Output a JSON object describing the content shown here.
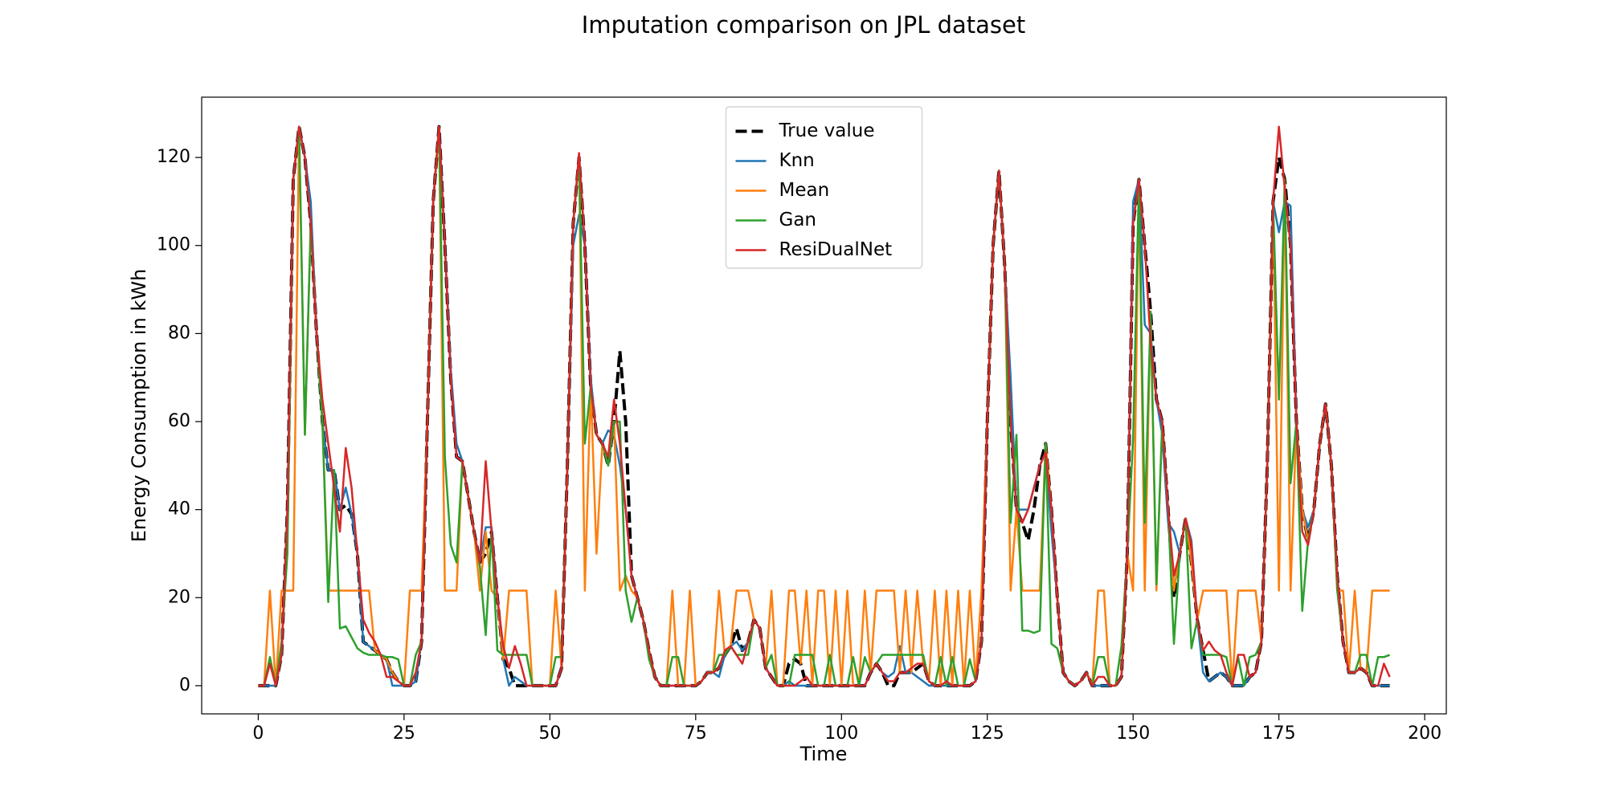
{
  "chart_data": {
    "type": "line",
    "title": "Imputation comparison on JPL dataset",
    "xlabel": "Time",
    "ylabel": "Energy Consumption in kWh",
    "xlim": [
      -9.7,
      203.7
    ],
    "ylim": [
      -6.4,
      133.7
    ],
    "xticks": [
      0,
      25,
      50,
      75,
      100,
      125,
      150,
      175,
      200
    ],
    "yticks": [
      0,
      20,
      40,
      60,
      80,
      100,
      120
    ],
    "legend": "upper center",
    "grid": false,
    "x": [
      0,
      1,
      2,
      3,
      4,
      5,
      6,
      7,
      8,
      9,
      10,
      11,
      12,
      13,
      14,
      15,
      16,
      17,
      18,
      19,
      20,
      21,
      22,
      23,
      24,
      25,
      26,
      27,
      28,
      29,
      30,
      31,
      32,
      33,
      34,
      35,
      36,
      37,
      38,
      39,
      40,
      41,
      42,
      43,
      44,
      45,
      46,
      47,
      48,
      49,
      50,
      51,
      52,
      53,
      54,
      55,
      56,
      57,
      58,
      59,
      60,
      61,
      62,
      63,
      64,
      65,
      66,
      67,
      68,
      69,
      70,
      71,
      72,
      73,
      74,
      75,
      76,
      77,
      78,
      79,
      80,
      81,
      82,
      83,
      84,
      85,
      86,
      87,
      88,
      89,
      90,
      91,
      92,
      93,
      94,
      95,
      96,
      97,
      98,
      99,
      100,
      101,
      102,
      103,
      104,
      105,
      106,
      107,
      108,
      109,
      110,
      111,
      112,
      113,
      114,
      115,
      116,
      117,
      118,
      119,
      120,
      121,
      122,
      123,
      124,
      125,
      126,
      127,
      128,
      129,
      130,
      131,
      132,
      133,
      134,
      135,
      136,
      137,
      138,
      139,
      140,
      141,
      142,
      143,
      144,
      145,
      146,
      147,
      148,
      149,
      150,
      151,
      152,
      153,
      154,
      155,
      156,
      157,
      158,
      159,
      160,
      161,
      162,
      163,
      164,
      165,
      166,
      167,
      168,
      169,
      170,
      171,
      172,
      173,
      174,
      175,
      176,
      177,
      178,
      179,
      180,
      181,
      182,
      183,
      184,
      185,
      186,
      187,
      188,
      189,
      190,
      191,
      192,
      193,
      194
    ],
    "series": [
      {
        "name": "True value",
        "color": "#000000",
        "linestyle": "dashed",
        "linewidth": 4,
        "values": [
          0,
          0,
          0,
          0,
          7,
          40,
          115,
          127,
          120,
          105,
          80,
          60,
          49,
          49,
          40,
          41,
          39,
          30,
          10,
          9,
          8,
          7,
          6,
          3,
          1,
          0,
          0,
          1,
          10,
          60,
          110,
          127,
          100,
          70,
          52,
          51,
          43,
          35,
          28,
          30,
          35,
          20,
          6,
          4,
          0,
          0,
          0,
          0,
          0,
          0,
          0,
          0,
          4,
          50,
          105,
          120,
          100,
          68,
          57,
          55,
          50,
          60,
          76,
          60,
          25,
          20,
          15,
          8,
          2,
          0,
          0,
          0,
          0,
          0,
          0,
          0,
          1,
          3,
          3,
          4,
          7,
          9,
          13,
          8,
          10,
          15,
          13,
          4,
          2,
          0,
          0,
          5,
          6,
          5,
          0,
          0,
          0,
          0,
          0,
          0,
          0,
          0,
          0,
          0,
          0,
          3,
          5,
          3,
          0,
          0,
          3,
          3,
          3,
          4,
          5,
          1,
          0,
          0,
          0,
          0,
          0,
          0,
          0,
          1,
          10,
          60,
          100,
          117,
          95,
          60,
          40,
          37,
          33,
          40,
          50,
          55,
          40,
          20,
          3,
          1,
          0,
          1,
          3,
          0,
          0,
          0,
          0,
          0,
          2,
          30,
          105,
          115,
          100,
          85,
          65,
          60,
          40,
          20,
          30,
          38,
          28,
          15,
          8,
          1,
          2,
          3,
          2,
          0,
          0,
          0,
          2,
          3,
          10,
          50,
          110,
          120,
          115,
          100,
          60,
          40,
          33,
          40,
          55,
          64,
          50,
          25,
          10,
          3,
          3,
          4,
          3,
          0,
          0,
          0,
          0
        ]
      },
      {
        "name": "Knn",
        "color": "#1f77b4",
        "linestyle": "solid",
        "linewidth": 2.5,
        "values": [
          0,
          0,
          0,
          0,
          7,
          40,
          115,
          127,
          120,
          110,
          80,
          60,
          49,
          49,
          40,
          45,
          39,
          30,
          10,
          9,
          8,
          7,
          6,
          0,
          0,
          0,
          0,
          1,
          10,
          60,
          110,
          127,
          100,
          72,
          55,
          51,
          43,
          35,
          28,
          36,
          36,
          20,
          6,
          0,
          2,
          1,
          0,
          0,
          0,
          0,
          0,
          0,
          4,
          50,
          100,
          107,
          100,
          70,
          57,
          55,
          58,
          57,
          50,
          40,
          25,
          20,
          15,
          8,
          2,
          0,
          0,
          0,
          0,
          0,
          0,
          0,
          1,
          3,
          3,
          2,
          7,
          9,
          10,
          8,
          10,
          15,
          13,
          4,
          2,
          0,
          0,
          1,
          0,
          0,
          0,
          0,
          0,
          0,
          0,
          0,
          0,
          0,
          0,
          0,
          0,
          3,
          5,
          3,
          2,
          3,
          9,
          3,
          3,
          2,
          1,
          0,
          0,
          0,
          0,
          0,
          0,
          0,
          0,
          1,
          10,
          60,
          100,
          117,
          95,
          70,
          40,
          40,
          40,
          45,
          50,
          53,
          35,
          20,
          3,
          1,
          0,
          1,
          3,
          0,
          0,
          0,
          0,
          0,
          2,
          30,
          110,
          115,
          82,
          80,
          65,
          57,
          37,
          35,
          30,
          38,
          33,
          15,
          3,
          1,
          2,
          3,
          2,
          0,
          0,
          0,
          2,
          3,
          10,
          50,
          110,
          103,
          110,
          109,
          60,
          40,
          36,
          40,
          55,
          64,
          50,
          25,
          10,
          3,
          3,
          4,
          3,
          0,
          0,
          0,
          0
        ]
      },
      {
        "name": "Mean",
        "color": "#ff7f0e",
        "linestyle": "solid",
        "linewidth": 2.5,
        "values": [
          0,
          0,
          21.6,
          0,
          21.6,
          21.6,
          21.6,
          127,
          57,
          105,
          80,
          60,
          21.6,
          21.6,
          21.6,
          21.6,
          21.6,
          21.6,
          21.6,
          21.6,
          8,
          7,
          6,
          3,
          1,
          0,
          21.6,
          21.6,
          21.6,
          60,
          110,
          127,
          21.6,
          21.6,
          21.6,
          51,
          43,
          35,
          21.6,
          35,
          21.6,
          20,
          6,
          21.6,
          21.6,
          21.6,
          21.6,
          0,
          0,
          0,
          0,
          21.6,
          4,
          50,
          105,
          120,
          21.6,
          68,
          30,
          55,
          50,
          60,
          21.6,
          25,
          21.6,
          20,
          15,
          8,
          2,
          0,
          0,
          21.6,
          0,
          0,
          21.6,
          0,
          1,
          3,
          3,
          21.6,
          7,
          9,
          21.6,
          21.6,
          21.6,
          15,
          13,
          4,
          21.6,
          0,
          0,
          21.6,
          21.6,
          5,
          21.6,
          0,
          21.6,
          21.6,
          0,
          21.6,
          0,
          21.6,
          0,
          0,
          21.6,
          3,
          21.6,
          21.6,
          21.6,
          21.6,
          3,
          21.6,
          3,
          21.6,
          5,
          1,
          21.6,
          0,
          21.6,
          0,
          21.6,
          0,
          21.6,
          1,
          21.6,
          60,
          100,
          117,
          95,
          21.6,
          40,
          21.6,
          21.6,
          21.6,
          21.6,
          55,
          40,
          20,
          3,
          1,
          0,
          1,
          3,
          0,
          21.6,
          21.6,
          0,
          0,
          2,
          30,
          21.6,
          115,
          21.6,
          85,
          21.6,
          60,
          40,
          21.6,
          30,
          38,
          28,
          15,
          21.6,
          21.6,
          21.6,
          21.6,
          21.6,
          0,
          21.6,
          21.6,
          21.6,
          21.6,
          10,
          50,
          110,
          21.6,
          115,
          21.6,
          60,
          40,
          33,
          40,
          55,
          64,
          50,
          21.6,
          21.6,
          3,
          21.6,
          4,
          3,
          21.6,
          21.6,
          21.6,
          21.6
        ]
      },
      {
        "name": "Gan",
        "color": "#2ca02c",
        "linestyle": "solid",
        "linewidth": 2.5,
        "values": [
          0,
          0,
          6.5,
          0,
          10,
          30,
          115,
          127,
          57,
          105,
          80,
          60,
          19,
          49,
          13,
          13.5,
          11,
          8.5,
          7.5,
          7,
          7,
          7,
          6.5,
          6.5,
          6,
          0,
          0,
          7,
          10,
          60,
          110,
          127,
          52,
          32,
          28,
          51,
          43,
          35,
          27,
          11.5,
          35,
          8,
          7,
          7,
          7,
          7,
          7,
          0,
          0,
          0,
          0,
          6.5,
          6.5,
          50,
          105,
          120,
          55,
          68,
          57,
          55,
          50,
          60,
          60,
          21.6,
          14.5,
          20,
          15,
          6,
          2,
          0,
          0,
          6.5,
          6.5,
          0,
          0,
          0,
          1,
          3,
          3,
          7,
          7,
          9,
          7,
          7,
          7,
          15,
          13,
          4,
          7,
          0,
          0,
          0,
          7,
          7,
          7,
          7,
          0,
          0,
          7,
          0,
          0,
          0,
          6.5,
          0,
          6.5,
          3,
          5,
          7,
          7,
          7,
          7,
          7,
          7,
          7,
          7,
          1,
          0,
          6.5,
          0,
          6.5,
          0,
          0,
          6,
          1,
          10,
          60,
          100,
          117,
          95,
          37,
          57,
          12.5,
          12.5,
          12,
          12.5,
          55,
          9.5,
          8.5,
          3,
          1,
          0,
          1,
          3,
          0,
          6.5,
          6.5,
          0,
          0,
          9,
          30,
          56,
          115,
          37,
          85,
          23,
          60,
          40,
          9.5,
          30,
          38,
          8.5,
          15,
          7,
          7,
          7,
          7,
          6.5,
          0,
          6.5,
          0,
          6.5,
          7,
          10,
          50,
          110,
          65,
          115,
          46,
          60,
          17,
          33,
          40,
          55,
          64,
          50,
          21.6,
          10,
          3,
          3,
          7,
          7,
          0,
          6.5,
          6.5,
          7
        ]
      },
      {
        "name": "ResiDualNet",
        "color": "#d62728",
        "linestyle": "solid",
        "linewidth": 2.5,
        "values": [
          0,
          0,
          5,
          0,
          7,
          40,
          115,
          127,
          120,
          105,
          80,
          65,
          55,
          45,
          35,
          54,
          45,
          30,
          15,
          12,
          10,
          7,
          2,
          2,
          1,
          0,
          0,
          3,
          10,
          60,
          110,
          127,
          100,
          70,
          52,
          51,
          43,
          35,
          28,
          51,
          35,
          20,
          9,
          4,
          9,
          5,
          0,
          0,
          0,
          0,
          0,
          0,
          4,
          50,
          105,
          121,
          100,
          68,
          57,
          55,
          52,
          65,
          55,
          40,
          25,
          20,
          15,
          8,
          2,
          0,
          0,
          0,
          0,
          0,
          0,
          0,
          1,
          3,
          3,
          4,
          8,
          9,
          7,
          5,
          10,
          15,
          13,
          4,
          2,
          0,
          0,
          0,
          0,
          1,
          2,
          0,
          0,
          0,
          0,
          0,
          0,
          0,
          0,
          0,
          0,
          3,
          5,
          3,
          1,
          1,
          3,
          3,
          4,
          5,
          5,
          1,
          0,
          0,
          1,
          0,
          0,
          0,
          0,
          1,
          10,
          60,
          100,
          117,
          95,
          60,
          40,
          37,
          40,
          45,
          50,
          53,
          40,
          20,
          3,
          1,
          0,
          1,
          3,
          0,
          2,
          2,
          0,
          0,
          2,
          30,
          105,
          115,
          100,
          78,
          65,
          60,
          40,
          25,
          30,
          38,
          32,
          15,
          8,
          10,
          8,
          7,
          3,
          0,
          7,
          7,
          2,
          3,
          10,
          50,
          110,
          127,
          113,
          100,
          60,
          35,
          32,
          40,
          55,
          64,
          50,
          25,
          10,
          3,
          3,
          4,
          3,
          0,
          0,
          5,
          2
        ]
      }
    ]
  }
}
